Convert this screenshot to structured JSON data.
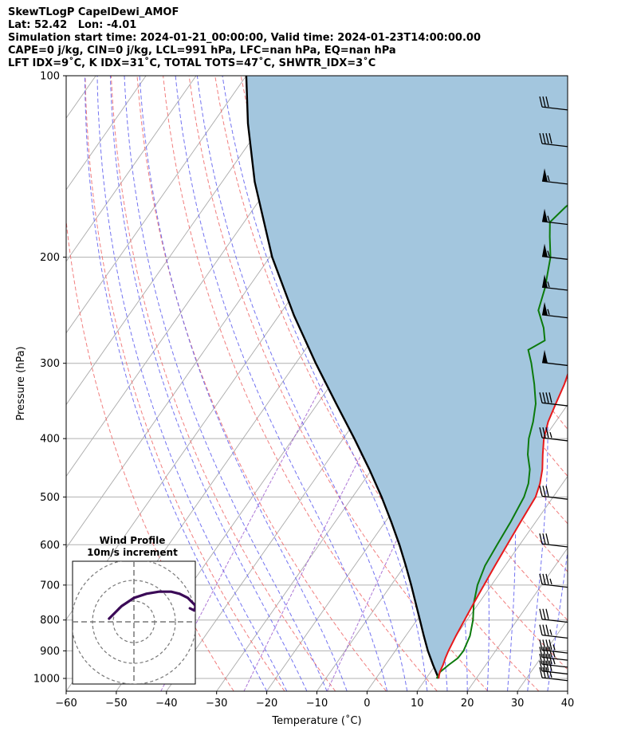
{
  "header": {
    "line1": "SkewTLogP CapelDewi_AMOF",
    "line2": "Lat: 52.42   Lon: -4.01",
    "line3": "Simulation start time: 2024-01-21_00:00:00, Valid time: 2024-01-23T14:00:00.00",
    "line4": "CAPE=0 j/kg, CIN=0 j/kg, LCL=991 hPa, LFC=nan hPa, EQ=nan hPa",
    "line5": "LFT IDX=9˚C, K IDX=31˚C, TOTAL TOTS=47˚C, SHWTR_IDX=3˚C"
  },
  "chart_data": {
    "type": "skew-t log-p",
    "xlabel": "Temperature (˚C)",
    "ylabel": "Pressure (hPa)",
    "xlim": [
      -60,
      40
    ],
    "ylim": [
      1050,
      100
    ],
    "y_scale": "log",
    "x_ticks": [
      "−60",
      "−50",
      "−40",
      "−30",
      "−20",
      "−10",
      "0",
      "10",
      "20",
      "30",
      "40"
    ],
    "y_ticks": [
      "100",
      "200",
      "300",
      "400",
      "500",
      "600",
      "700",
      "800",
      "900",
      "1000"
    ],
    "grid": true,
    "colors": {
      "temperature": "#e8191b",
      "dewpoint": "#0c7a0c",
      "parcel": "#000000",
      "shading": "#a3c6de",
      "dry_adiabats": "#f07070",
      "moist_adiabats": "#5a5aee",
      "mixing_ratio": "#9955cc",
      "isotherms": "#aaaaaa"
    },
    "temperature": [
      [
        1000,
        12.5
      ],
      [
        990,
        12.2
      ],
      [
        975,
        11.8
      ],
      [
        950,
        11.5
      ],
      [
        925,
        11.0
      ],
      [
        900,
        10.6
      ],
      [
        850,
        10.0
      ],
      [
        800,
        9.5
      ],
      [
        750,
        9.0
      ],
      [
        700,
        8.5
      ],
      [
        650,
        8.0
      ],
      [
        600,
        7.5
      ],
      [
        550,
        7.0
      ],
      [
        500,
        6.5
      ],
      [
        475,
        5.5
      ],
      [
        450,
        4.0
      ],
      [
        425,
        2.0
      ],
      [
        400,
        0.0
      ],
      [
        375,
        -1.5
      ],
      [
        350,
        -2.5
      ],
      [
        325,
        -3.5
      ],
      [
        300,
        -5.0
      ],
      [
        275,
        -7.5
      ],
      [
        250,
        -10.0
      ],
      [
        225,
        -13.0
      ],
      [
        200,
        -16.5
      ],
      [
        185,
        -19.0
      ],
      [
        175,
        -21.5
      ],
      [
        165,
        -19.5
      ],
      [
        155,
        -16.0
      ],
      [
        145,
        -12.0
      ],
      [
        135,
        -7.0
      ],
      [
        127,
        -3.5
      ],
      [
        120,
        -0.5
      ],
      [
        113,
        1.8
      ],
      [
        106,
        3.0
      ],
      [
        100,
        3.5
      ]
    ],
    "dewpoint": [
      [
        1000,
        12.1
      ],
      [
        975,
        11.9
      ],
      [
        950,
        12.6
      ],
      [
        925,
        13.5
      ],
      [
        900,
        13.6
      ],
      [
        850,
        12.8
      ],
      [
        800,
        11.2
      ],
      [
        750,
        9.0
      ],
      [
        700,
        7.2
      ],
      [
        650,
        6.0
      ],
      [
        600,
        5.5
      ],
      [
        550,
        5.0
      ],
      [
        500,
        4.2
      ],
      [
        475,
        3.2
      ],
      [
        450,
        1.5
      ],
      [
        425,
        -1.0
      ],
      [
        400,
        -3.0
      ],
      [
        375,
        -4.5
      ],
      [
        350,
        -6.5
      ],
      [
        325,
        -9.5
      ],
      [
        300,
        -13.0
      ],
      [
        285,
        -15.5
      ],
      [
        275,
        -13.5
      ],
      [
        262,
        -15.5
      ],
      [
        245,
        -19.0
      ],
      [
        225,
        -20.8
      ],
      [
        200,
        -24.0
      ],
      [
        185,
        -27.0
      ],
      [
        175,
        -29.0
      ],
      [
        165,
        -28.0
      ],
      [
        155,
        -26.0
      ],
      [
        145,
        -25.0
      ],
      [
        140,
        -24.0
      ],
      [
        133,
        -27.0
      ],
      [
        127,
        -27.5
      ],
      [
        120,
        -26.0
      ],
      [
        110,
        -22.5
      ],
      [
        100,
        -19.0
      ]
    ],
    "parcel": [
      [
        1000,
        12.5
      ],
      [
        950,
        9.5
      ],
      [
        900,
        6.5
      ],
      [
        850,
        3.6
      ],
      [
        800,
        0.6
      ],
      [
        750,
        -2.6
      ],
      [
        700,
        -6.0
      ],
      [
        650,
        -9.8
      ],
      [
        600,
        -14.0
      ],
      [
        550,
        -18.8
      ],
      [
        500,
        -24.2
      ],
      [
        450,
        -30.5
      ],
      [
        400,
        -37.8
      ],
      [
        350,
        -46.3
      ],
      [
        300,
        -56.0
      ],
      [
        250,
        -67.0
      ],
      [
        200,
        -79.5
      ],
      [
        150,
        -93.5
      ],
      [
        120,
        -103.0
      ],
      [
        100,
        -110.0
      ]
    ],
    "wind_barbs_speed_kt": [
      [
        1000,
        35
      ],
      [
        975,
        40
      ],
      [
        950,
        45
      ],
      [
        925,
        45
      ],
      [
        900,
        45
      ],
      [
        850,
        35
      ],
      [
        800,
        30
      ],
      [
        700,
        35
      ],
      [
        600,
        30
      ],
      [
        500,
        30
      ],
      [
        400,
        35
      ],
      [
        350,
        40
      ],
      [
        300,
        50
      ],
      [
        250,
        55
      ],
      [
        225,
        55
      ],
      [
        200,
        55
      ],
      [
        175,
        55
      ],
      [
        150,
        55
      ],
      [
        130,
        40
      ],
      [
        113,
        30
      ]
    ],
    "inset": {
      "title": "Wind Profile",
      "subtitle": "10m/s increment",
      "hodograph_uv": [
        [
          -6,
          -5
        ],
        [
          -3,
          -2
        ],
        [
          0,
          0
        ],
        [
          3,
          1
        ],
        [
          6,
          1.5
        ],
        [
          9,
          1.5
        ],
        [
          11,
          1
        ],
        [
          13,
          0
        ],
        [
          14,
          -1
        ],
        [
          15,
          -2
        ],
        [
          14.5,
          -3
        ],
        [
          13.5,
          -2.5
        ]
      ]
    }
  }
}
